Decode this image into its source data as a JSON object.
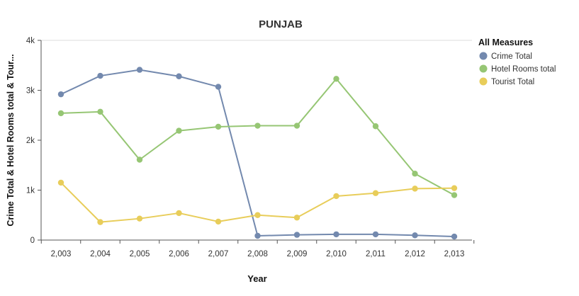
{
  "chart_data": {
    "type": "line",
    "title": "PUNJAB",
    "xlabel": "Year",
    "ylabel": "Crime Total & Hotel Rooms total & Tour...",
    "categories": [
      "2,003",
      "2,004",
      "2,005",
      "2,006",
      "2,007",
      "2,008",
      "2,009",
      "2,010",
      "2,011",
      "2,012",
      "2,013"
    ],
    "ylim": [
      0,
      4000
    ],
    "yticks": [
      {
        "value": 0,
        "label": "0"
      },
      {
        "value": 1000,
        "label": "1k"
      },
      {
        "value": 2000,
        "label": "2k"
      },
      {
        "value": 3000,
        "label": "3k"
      },
      {
        "value": 4000,
        "label": "4k"
      }
    ],
    "grid": {
      "horizontal_top_line": true,
      "horizontal": false,
      "vertical": false
    },
    "legend": {
      "title": "All Measures",
      "placement": "top-right"
    },
    "series": [
      {
        "name": "Crime Total",
        "color": "#7389ae",
        "values": [
          2920,
          3290,
          3410,
          3280,
          3070,
          85,
          105,
          115,
          115,
          95,
          70
        ]
      },
      {
        "name": "Hotel Rooms total",
        "color": "#96c674",
        "values": [
          2540,
          2570,
          1610,
          2190,
          2270,
          2290,
          2290,
          3230,
          2280,
          1330,
          900
        ]
      },
      {
        "name": "Tourist Total",
        "color": "#e8cd5a",
        "values": [
          1150,
          360,
          430,
          540,
          370,
          500,
          450,
          880,
          940,
          1030,
          1040
        ]
      }
    ]
  }
}
